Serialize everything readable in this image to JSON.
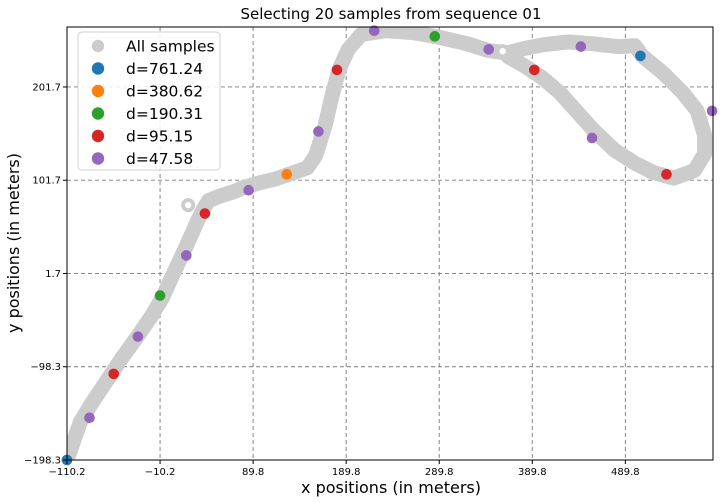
{
  "chart_data": {
    "type": "scatter",
    "title": "Selecting 20 samples from sequence 01",
    "xlabel": "x positions (in meters)",
    "ylabel": "y positions (in meters)",
    "xlim": [
      -110.2,
      584.0
    ],
    "ylim": [
      -198.3,
      266.0
    ],
    "xticks": [
      -110.2,
      -10.2,
      89.8,
      189.8,
      289.8,
      389.8,
      489.8
    ],
    "xtick_labels": [
      "−110.2",
      "−10.2",
      "89.8",
      "189.8",
      "289.8",
      "389.8",
      "489.8"
    ],
    "yticks": [
      -198.3,
      -98.3,
      1.7,
      101.7,
      201.7
    ],
    "ytick_labels": [
      "−198.3",
      "−98.3",
      "1.7",
      "101.7",
      "201.7"
    ],
    "grid": true,
    "legend_position": "top-left",
    "series": [
      {
        "name": "All samples",
        "color": "#cccccc",
        "style": "trajectory",
        "points": [
          [
            -110.2,
            -198.3
          ],
          [
            -102.0,
            -175.0
          ],
          [
            -96.0,
            -158.0
          ],
          [
            -84.0,
            -138.0
          ],
          [
            -68.0,
            -114.0
          ],
          [
            -52.0,
            -90.0
          ],
          [
            -36.0,
            -68.0
          ],
          [
            -20.0,
            -45.0
          ],
          [
            -8.0,
            -25.0
          ],
          [
            2.0,
            -3.0
          ],
          [
            12.0,
            18.0
          ],
          [
            22.0,
            40.0
          ],
          [
            30.0,
            58.0
          ],
          [
            36.0,
            70.0
          ],
          [
            42.0,
            80.0
          ],
          [
            55.0,
            85.0
          ],
          [
            68.0,
            89.0
          ],
          [
            80.0,
            94.0
          ],
          [
            97.0,
            99.0
          ],
          [
            114.0,
            103.0
          ],
          [
            128.0,
            108.0
          ],
          [
            148.0,
            115.0
          ],
          [
            157.0,
            128.0
          ],
          [
            167.0,
            160.0
          ],
          [
            174.0,
            190.0
          ],
          [
            182.0,
            220.0
          ],
          [
            192.0,
            242.0
          ],
          [
            206.0,
            258.0
          ],
          [
            232.0,
            262.0
          ],
          [
            262.0,
            260.0
          ],
          [
            290.0,
            255.0
          ],
          [
            320.0,
            248.0
          ],
          [
            342.0,
            241.0
          ],
          [
            362.0,
            238.0
          ],
          [
            382.0,
            243.0
          ],
          [
            402.0,
            247.0
          ],
          [
            428.0,
            250.0
          ],
          [
            455.0,
            248.0
          ],
          [
            482.0,
            245.0
          ],
          [
            500.0,
            246.0
          ],
          [
            508.0,
            235.0
          ],
          [
            530.0,
            217.0
          ],
          [
            552.0,
            195.0
          ],
          [
            567.0,
            176.0
          ],
          [
            575.0,
            150.0
          ],
          [
            575.0,
            130.0
          ],
          [
            564.0,
            112.0
          ],
          [
            542.0,
            104.0
          ],
          [
            520.0,
            110.0
          ],
          [
            500.0,
            120.0
          ],
          [
            478.0,
            134.0
          ],
          [
            456.0,
            155.0
          ],
          [
            438.0,
            175.0
          ],
          [
            420.0,
            195.0
          ],
          [
            400.0,
            212.0
          ],
          [
            382.0,
            224.0
          ],
          [
            364.0,
            234.0
          ]
        ]
      },
      {
        "name": "d=761.24",
        "color": "#1f77b4",
        "points": [
          [
            -110.2,
            -198.3
          ],
          [
            506.0,
            235.0
          ]
        ]
      },
      {
        "name": "d=380.62",
        "color": "#ff7f0e",
        "points": [
          [
            -110.2,
            -198.3
          ],
          [
            126.0,
            108.0
          ]
        ]
      },
      {
        "name": "d=190.31",
        "color": "#2ca02c",
        "points": [
          [
            -10.2,
            -22.0
          ],
          [
            285.0,
            256.0
          ]
        ]
      },
      {
        "name": "d=95.15",
        "color": "#d62728",
        "points": [
          [
            -60.0,
            -106.0
          ],
          [
            38.0,
            66.0
          ],
          [
            180.0,
            220.0
          ],
          [
            392.0,
            220.0
          ],
          [
            534.0,
            108.0
          ]
        ]
      },
      {
        "name": "d=47.58",
        "color": "#9467bd",
        "points": [
          [
            -86.0,
            -153.0
          ],
          [
            -34.0,
            -66.0
          ],
          [
            18.0,
            21.0
          ],
          [
            85.0,
            91.0
          ],
          [
            160.0,
            154.0
          ],
          [
            220.0,
            262.0
          ],
          [
            343.0,
            242.0
          ],
          [
            442.0,
            245.0
          ],
          [
            454.0,
            147.0
          ],
          [
            583.0,
            176.0
          ]
        ]
      }
    ]
  }
}
